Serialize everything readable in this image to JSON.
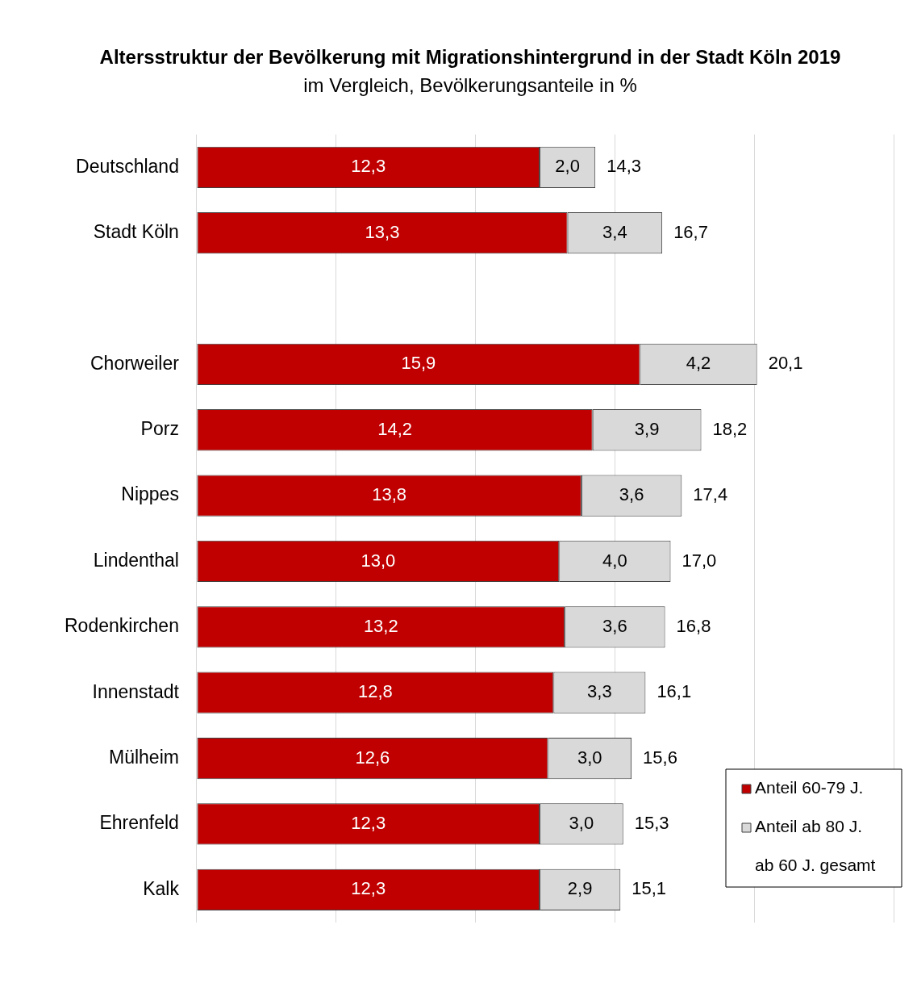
{
  "chart_data": {
    "type": "bar",
    "orientation": "horizontal",
    "stacked": true,
    "title": "Altersstruktur der Bevölkerung mit Migrationshintergrund in der Stadt Köln 2019",
    "subtitle": "im Vergleich, Bevölkerungsanteile in %",
    "categories": [
      "Deutschland",
      "Stadt Köln",
      null,
      "Chorweiler",
      "Porz",
      "Nippes",
      "Lindenthal",
      "Rodenkirchen",
      "Innenstadt",
      "Mülheim",
      "Ehrenfeld",
      "Kalk"
    ],
    "series": [
      {
        "name": "Anteil 60-79 J.",
        "color": "#c00000",
        "values": [
          12.3,
          13.3,
          null,
          15.9,
          14.2,
          13.8,
          13.0,
          13.2,
          12.8,
          12.6,
          12.3,
          12.3
        ],
        "value_labels": [
          "12,3",
          "13,3",
          null,
          "15,9",
          "14,2",
          "13,8",
          "13,0",
          "13,2",
          "12,8",
          "12,6",
          "12,3",
          "12,3"
        ]
      },
      {
        "name": "Anteil ab 80 J.",
        "color": "#d9d9d9",
        "values": [
          2.0,
          3.4,
          null,
          4.2,
          3.9,
          3.6,
          4.0,
          3.6,
          3.3,
          3.0,
          3.0,
          2.9
        ],
        "value_labels": [
          "2,0",
          "3,4",
          null,
          "4,2",
          "3,9",
          "3,6",
          "4,0",
          "3,6",
          "3,3",
          "3,0",
          "3,0",
          "2,9"
        ]
      }
    ],
    "totals": [
      "14,3",
      "16,7",
      null,
      "20,1",
      "18,2",
      "17,4",
      "17,0",
      "16,8",
      "16,1",
      "15,6",
      "15,3",
      "15,1"
    ],
    "annotations": [
      "ab 60 J. gesamt"
    ],
    "tick_labels": "y",
    "grid": "x",
    "legend": "bottom right"
  }
}
